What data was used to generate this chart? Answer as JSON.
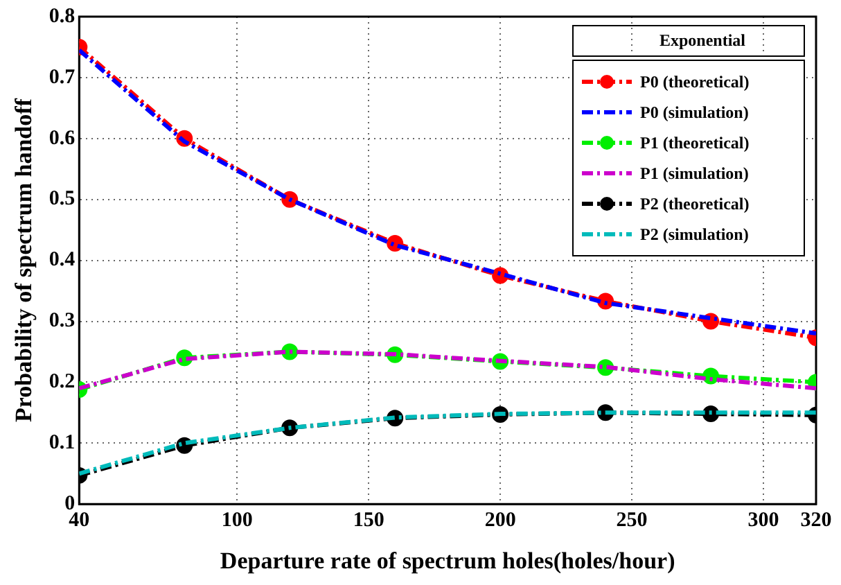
{
  "chart_data": {
    "type": "line",
    "xlabel": "Departure rate of spectrum holes(holes/hour)",
    "ylabel": "Probability of spectrum handoff",
    "legend_title": "Exponential",
    "x": [
      40,
      80,
      120,
      160,
      200,
      240,
      280,
      320
    ],
    "series": [
      {
        "name": "P0 (theoretical)",
        "color": "#ff0000",
        "marker": "circle",
        "values": [
          0.75,
          0.6,
          0.5,
          0.428,
          0.375,
          0.333,
          0.3,
          0.273
        ]
      },
      {
        "name": "P0 (simulation)",
        "color": "#0000ff",
        "marker": "none",
        "values": [
          0.745,
          0.595,
          0.5,
          0.425,
          0.378,
          0.33,
          0.305,
          0.28
        ]
      },
      {
        "name": "P1 (theoretical)",
        "color": "#00ee00",
        "marker": "circle",
        "values": [
          0.188,
          0.24,
          0.25,
          0.245,
          0.234,
          0.224,
          0.21,
          0.2
        ]
      },
      {
        "name": "P1 (simulation)",
        "color": "#cc00cc",
        "marker": "none",
        "values": [
          0.19,
          0.238,
          0.25,
          0.246,
          0.235,
          0.225,
          0.205,
          0.19
        ]
      },
      {
        "name": "P2 (theoretical)",
        "color": "#000000",
        "marker": "circle",
        "values": [
          0.047,
          0.096,
          0.125,
          0.141,
          0.147,
          0.15,
          0.148,
          0.146
        ]
      },
      {
        "name": "P2 (simulation)",
        "color": "#00bbbb",
        "marker": "none",
        "values": [
          0.05,
          0.1,
          0.125,
          0.142,
          0.148,
          0.15,
          0.15,
          0.15
        ]
      }
    ],
    "xlim": [
      40,
      320
    ],
    "xticks": [
      40,
      100,
      150,
      200,
      250,
      300,
      320
    ],
    "ylim": [
      0,
      0.8
    ],
    "yticks": [
      0,
      0.1,
      0.2,
      0.3,
      0.4,
      0.5,
      0.6,
      0.7,
      0.8
    ],
    "grid": true,
    "legend": "top right",
    "line_style": "dashed"
  }
}
